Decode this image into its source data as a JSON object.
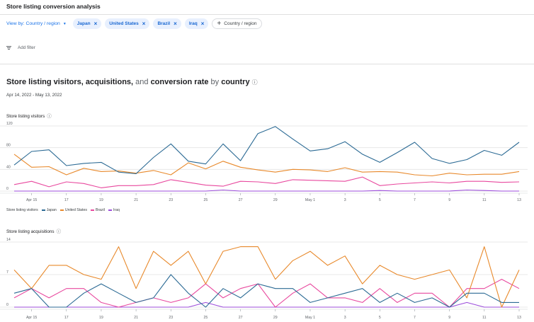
{
  "page": {
    "title": "Store listing conversion analysis",
    "view_by": "View by: Country / region",
    "chips": [
      "Japan",
      "United States",
      "Brazil",
      "Iraq"
    ],
    "add_chip": "Country / region",
    "add_filter": "Add filter",
    "heading": {
      "p1": "Store listing visitors, acquisitions,",
      "p2": " and ",
      "p3": "conversion rate",
      "p4": " by ",
      "p5": "country"
    },
    "date_range": "Apr 14, 2022 - May 13, 2022"
  },
  "colors": {
    "Japan": "#2b6a94",
    "United States": "#e8892b",
    "Brazil": "#e8489e",
    "Iraq": "#9c4ddb",
    "grid": "#e3e3e3",
    "axis": "#9aa0a6"
  },
  "chart_data": [
    {
      "type": "line",
      "title": "Store listing visitors",
      "legend_label": "Store listing visitors",
      "x_ticks": [
        "Apr 15",
        "17",
        "19",
        "21",
        "23",
        "25",
        "27",
        "29",
        "May 1",
        "3",
        "5",
        "7",
        "9",
        "11",
        "13"
      ],
      "y_ticks": [
        0,
        40,
        80,
        120
      ],
      "ylim": [
        0,
        120
      ],
      "grid": true,
      "series": [
        {
          "name": "Japan",
          "values": [
            48,
            73,
            76,
            47,
            51,
            53,
            35,
            32,
            62,
            87,
            55,
            50,
            87,
            56,
            106,
            119,
            96,
            74,
            78,
            91,
            68,
            53,
            71,
            90,
            60,
            51,
            58,
            75,
            66,
            90
          ]
        },
        {
          "name": "United States",
          "values": [
            68,
            44,
            45,
            30,
            42,
            36,
            37,
            33,
            38,
            30,
            52,
            41,
            55,
            44,
            39,
            35,
            40,
            39,
            36,
            43,
            35,
            36,
            35,
            30,
            28,
            33,
            30,
            31,
            31,
            36
          ]
        },
        {
          "name": "Brazil",
          "values": [
            12,
            18,
            8,
            17,
            14,
            6,
            10,
            10,
            12,
            21,
            16,
            11,
            9,
            18,
            17,
            14,
            21,
            20,
            19,
            18,
            26,
            10,
            13,
            15,
            17,
            15,
            18,
            18,
            16,
            17
          ]
        },
        {
          "name": "Iraq",
          "values": [
            0,
            0,
            0,
            0,
            0,
            0,
            0,
            0,
            0,
            0,
            0,
            0,
            2,
            0,
            0,
            0,
            0,
            0,
            0,
            0,
            0,
            1,
            0,
            0,
            0,
            0,
            2,
            1,
            0,
            0
          ]
        }
      ]
    },
    {
      "type": "line",
      "title": "Store listing acquisitions",
      "x_ticks": [
        "Apr 15",
        "17",
        "19",
        "21",
        "23",
        "25",
        "27",
        "29",
        "May 1",
        "3",
        "5",
        "7",
        "9",
        "11",
        "13"
      ],
      "y_ticks": [
        0,
        7,
        14
      ],
      "ylim": [
        0,
        14
      ],
      "grid": true,
      "series": [
        {
          "name": "Japan",
          "values": [
            3,
            4,
            0,
            0,
            3,
            5,
            3,
            1,
            2,
            7,
            3,
            0,
            4,
            2,
            5,
            4,
            4,
            1,
            2,
            3,
            4,
            1,
            3,
            1,
            2,
            0,
            3,
            3,
            1,
            1
          ]
        },
        {
          "name": "United States",
          "values": [
            8,
            4,
            9,
            9,
            7,
            6,
            13,
            4,
            12,
            9,
            12,
            5,
            12,
            13,
            13,
            6,
            10,
            12,
            9,
            11,
            5,
            9,
            7,
            6,
            7,
            8,
            2,
            13,
            0,
            8
          ]
        },
        {
          "name": "Brazil",
          "values": [
            2,
            4,
            2,
            4,
            4,
            1,
            0,
            1,
            2,
            1,
            2,
            5,
            2,
            4,
            5,
            0,
            3,
            5,
            2,
            2,
            1,
            4,
            1,
            3,
            3,
            0,
            4,
            4,
            6,
            4
          ]
        },
        {
          "name": "Iraq",
          "values": [
            0,
            0,
            0,
            0,
            0,
            0,
            0,
            0,
            0,
            0,
            0,
            1,
            0,
            0,
            0,
            0,
            0,
            0,
            0,
            0,
            0,
            0,
            0,
            0,
            0,
            0,
            1,
            0,
            0,
            0
          ]
        }
      ]
    }
  ]
}
